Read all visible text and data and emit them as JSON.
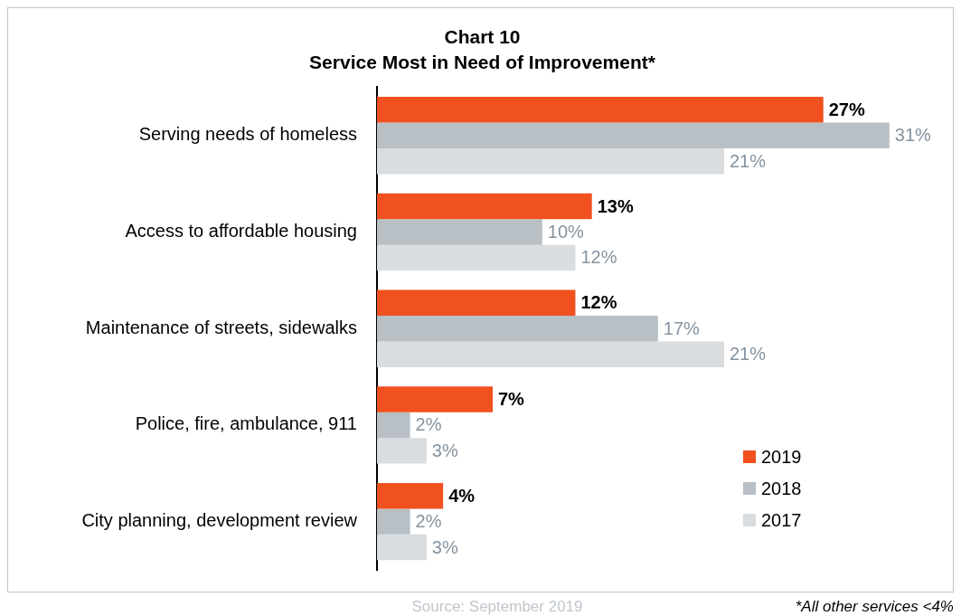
{
  "chart_data": {
    "type": "bar",
    "orientation": "horizontal",
    "title": "Chart 10",
    "subtitle": "Service Most in Need of Improvement*",
    "categories": [
      "Serving needs of homeless",
      "Access to affordable housing",
      "Maintenance of streets, sidewalks",
      "Police, fire, ambulance, 911",
      "City planning, development review"
    ],
    "series": [
      {
        "name": "2019",
        "color": "#f0511e",
        "values": [
          27,
          13,
          12,
          7,
          4
        ],
        "value_labels": [
          "27%",
          "13%",
          "12%",
          "7%",
          "4%"
        ]
      },
      {
        "name": "2018",
        "color": "#b8c0c6",
        "values": [
          31,
          10,
          17,
          2,
          2
        ],
        "value_labels": [
          "31%",
          "10%",
          "17%",
          "2%",
          "2%"
        ]
      },
      {
        "name": "2017",
        "color": "#d9dde0",
        "values": [
          21,
          12,
          21,
          3,
          3
        ],
        "value_labels": [
          "21%",
          "12%",
          "21%",
          "3%",
          "3%"
        ]
      }
    ],
    "legend": "bottom right",
    "tick_labels": "y",
    "annotations": [
      "Source: September 2019",
      "*All other services <4%"
    ]
  }
}
